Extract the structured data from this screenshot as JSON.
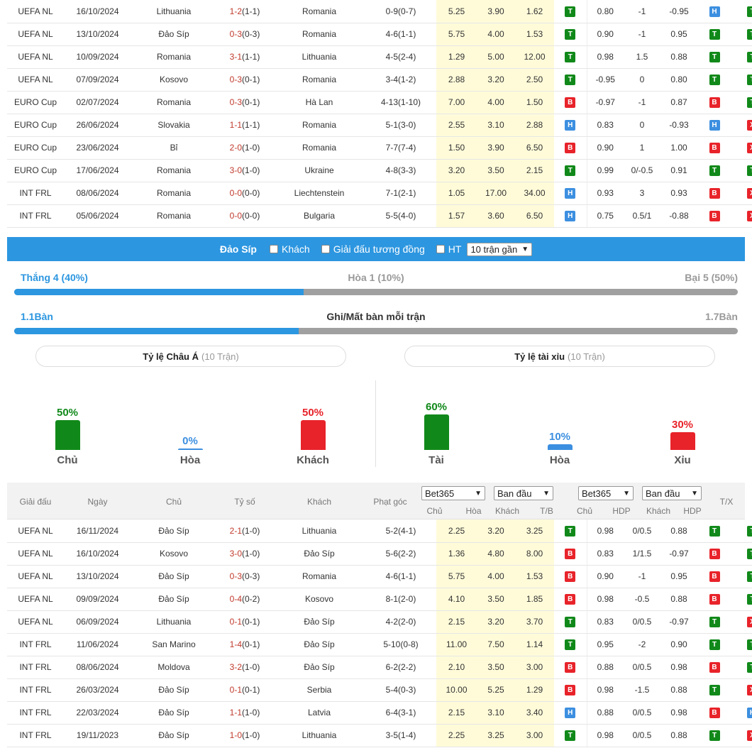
{
  "top_table": {
    "rows": [
      {
        "league": "UEFA NL",
        "date": "16/10/2024",
        "home": "Lithuania",
        "home_hl": false,
        "score": "1-2",
        "ht": "(1-1)",
        "away": "Romania",
        "away_hl": true,
        "corner": "0-9(0-7)",
        "o1": "5.25",
        "o2": "3.90",
        "o3": "1.62",
        "r1": "T",
        "h1": "0.80",
        "h2": "-1",
        "h3": "-0.95",
        "r2": "H",
        "r3": "T"
      },
      {
        "league": "UEFA NL",
        "date": "13/10/2024",
        "home": "Đảo Síp",
        "home_hl": false,
        "score": "0-3",
        "ht": "(0-3)",
        "away": "Romania",
        "away_hl": true,
        "corner": "4-6(1-1)",
        "o1": "5.75",
        "o2": "4.00",
        "o3": "1.53",
        "r1": "T",
        "h1": "0.90",
        "h2": "-1",
        "h3": "0.95",
        "r2": "T",
        "r3": "T"
      },
      {
        "league": "UEFA NL",
        "date": "10/09/2024",
        "home": "Romania",
        "home_hl": true,
        "score": "3-1",
        "ht": "(1-1)",
        "away": "Lithuania",
        "away_hl": false,
        "corner": "4-5(2-4)",
        "o1": "1.29",
        "o2": "5.00",
        "o3": "12.00",
        "r1": "T",
        "h1": "0.98",
        "h2": "1.5",
        "h3": "0.88",
        "r2": "T",
        "r3": "T"
      },
      {
        "league": "UEFA NL",
        "date": "07/09/2024",
        "home": "Kosovo",
        "home_hl": false,
        "score": "0-3",
        "ht": "(0-1)",
        "away": "Romania",
        "away_hl": true,
        "corner": "3-4(1-2)",
        "o1": "2.88",
        "o2": "3.20",
        "o3": "2.50",
        "r1": "T",
        "h1": "-0.95",
        "h2": "0",
        "h3": "0.80",
        "r2": "T",
        "r3": "T"
      },
      {
        "league": "EURO Cup",
        "date": "02/07/2024",
        "home": "Romania",
        "home_hl": true,
        "score": "0-3",
        "ht": "(0-1)",
        "away": "Hà Lan",
        "away_hl": false,
        "corner": "4-13(1-10)",
        "o1": "7.00",
        "o2": "4.00",
        "o3": "1.50",
        "r1": "B",
        "h1": "-0.97",
        "h2": "-1",
        "h3": "0.87",
        "r2": "B",
        "r3": "T"
      },
      {
        "league": "EURO Cup",
        "date": "26/06/2024",
        "home": "Slovakia",
        "home_hl": false,
        "score": "1-1",
        "ht": "(1-1)",
        "away": "Romania",
        "away_hl": true,
        "corner": "5-1(3-0)",
        "o1": "2.55",
        "o2": "3.10",
        "o3": "2.88",
        "r1": "H",
        "h1": "0.83",
        "h2": "0",
        "h3": "-0.93",
        "r2": "H",
        "r3": "X"
      },
      {
        "league": "EURO Cup",
        "date": "23/06/2024",
        "home": "Bỉ",
        "home_hl": false,
        "score": "2-0",
        "ht": "(1-0)",
        "away": "Romania",
        "away_hl": true,
        "corner": "7-7(7-4)",
        "o1": "1.50",
        "o2": "3.90",
        "o3": "6.50",
        "r1": "B",
        "h1": "0.90",
        "h2": "1",
        "h3": "1.00",
        "r2": "B",
        "r3": "X"
      },
      {
        "league": "EURO Cup",
        "date": "17/06/2024",
        "home": "Romania",
        "home_hl": true,
        "score": "3-0",
        "ht": "(1-0)",
        "away": "Ukraine",
        "away_hl": false,
        "corner": "4-8(3-3)",
        "o1": "3.20",
        "o2": "3.50",
        "o3": "2.15",
        "r1": "T",
        "h1": "0.99",
        "h2": "0/-0.5",
        "h3": "0.91",
        "r2": "T",
        "r3": "T"
      },
      {
        "league": "INT FRL",
        "date": "08/06/2024",
        "home": "Romania",
        "home_hl": true,
        "score": "0-0",
        "ht": "(0-0)",
        "away": "Liechtenstein",
        "away_hl": false,
        "corner": "7-1(2-1)",
        "o1": "1.05",
        "o2": "17.00",
        "o3": "34.00",
        "r1": "H",
        "h1": "0.93",
        "h2": "3",
        "h3": "0.93",
        "r2": "B",
        "r3": "X"
      },
      {
        "league": "INT FRL",
        "date": "05/06/2024",
        "home": "Romania",
        "home_hl": true,
        "score": "0-0",
        "ht": "(0-0)",
        "away": "Bulgaria",
        "away_hl": false,
        "corner": "5-5(4-0)",
        "o1": "1.57",
        "o2": "3.60",
        "o3": "6.50",
        "r1": "H",
        "h1": "0.75",
        "h2": "0.5/1",
        "h3": "-0.88",
        "r2": "B",
        "r3": "X"
      }
    ]
  },
  "filter": {
    "team": "Đảo Síp",
    "opt_away": "Khách",
    "opt_same_league": "Giải đấu tương đồng",
    "opt_ht": "HT",
    "select": "10 trận gần"
  },
  "summary": {
    "win": "Thắng 4 (40%)",
    "draw": "Hòa 1 (10%)",
    "loss": "Bại 5 (50%)",
    "win_frac": 0.4,
    "goals_for": "1.1Bàn",
    "goals_title": "Ghi/Mất bàn mỗi trận",
    "goals_against": "1.7Bàn",
    "goals_frac": 0.393
  },
  "panels": {
    "asian": {
      "title": "Tỷ lệ Châu Á",
      "sub": "(10 Trận)"
    },
    "ou": {
      "title": "Tỷ lệ tài xỉu",
      "sub": "(10 Trận)"
    }
  },
  "asian_bars": [
    {
      "pct": "50%",
      "label": "Chủ",
      "value": 50,
      "color": "#11891a"
    },
    {
      "pct": "0%",
      "label": "Hòa",
      "value": 0,
      "color": "#3c8fe0"
    },
    {
      "pct": "50%",
      "label": "Khách",
      "value": 50,
      "color": "#e8232a"
    }
  ],
  "ou_bars": [
    {
      "pct": "60%",
      "label": "Tài",
      "value": 60,
      "color": "#11891a"
    },
    {
      "pct": "10%",
      "label": "Hòa",
      "value": 10,
      "color": "#3c8fe0"
    },
    {
      "pct": "30%",
      "label": "Xỉu",
      "value": 30,
      "color": "#e8232a"
    }
  ],
  "table2_header": {
    "league": "Giải đấu",
    "date": "Ngày",
    "home": "Chủ",
    "score": "Tỷ số",
    "away": "Khách",
    "corner": "Phạt góc",
    "bookmaker1": "Bet365",
    "type1": "Ban đầu",
    "bookmaker2": "Bet365",
    "type2": "Ban đầu",
    "c_home": "Chủ",
    "c_draw": "Hòa",
    "c_away": "Khách",
    "c_tb": "T/B",
    "c_home2": "Chủ",
    "c_hdp": "HDP",
    "c_away2": "Khách",
    "c_hdp2": "HDP",
    "c_tx": "T/X"
  },
  "bottom_table": {
    "rows": [
      {
        "league": "UEFA NL",
        "date": "16/11/2024",
        "home": "Đảo Síp",
        "home_hl": true,
        "score": "2-1",
        "ht": "(1-0)",
        "away": "Lithuania",
        "away_hl": false,
        "corner": "5-2(4-1)",
        "o1": "2.25",
        "o2": "3.20",
        "o3": "3.25",
        "r1": "T",
        "h1": "0.98",
        "h2": "0/0.5",
        "h3": "0.88",
        "r2": "T",
        "r3": "T"
      },
      {
        "league": "UEFA NL",
        "date": "16/10/2024",
        "home": "Kosovo",
        "home_hl": false,
        "score": "3-0",
        "ht": "(1-0)",
        "away": "Đảo Síp",
        "away_hl": true,
        "corner": "5-6(2-2)",
        "o1": "1.36",
        "o2": "4.80",
        "o3": "8.00",
        "r1": "B",
        "h1": "0.83",
        "h2": "1/1.5",
        "h3": "-0.97",
        "r2": "B",
        "r3": "T"
      },
      {
        "league": "UEFA NL",
        "date": "13/10/2024",
        "home": "Đảo Síp",
        "home_hl": true,
        "score": "0-3",
        "ht": "(0-3)",
        "away": "Romania",
        "away_hl": false,
        "corner": "4-6(1-1)",
        "o1": "5.75",
        "o2": "4.00",
        "o3": "1.53",
        "r1": "B",
        "h1": "0.90",
        "h2": "-1",
        "h3": "0.95",
        "r2": "B",
        "r3": "T"
      },
      {
        "league": "UEFA NL",
        "date": "09/09/2024",
        "home": "Đảo Síp",
        "home_hl": true,
        "score": "0-4",
        "ht": "(0-2)",
        "away": "Kosovo",
        "away_hl": false,
        "corner": "8-1(2-0)",
        "o1": "4.10",
        "o2": "3.50",
        "o3": "1.85",
        "r1": "B",
        "h1": "0.98",
        "h2": "-0.5",
        "h3": "0.88",
        "r2": "B",
        "r3": "T"
      },
      {
        "league": "UEFA NL",
        "date": "06/09/2024",
        "home": "Lithuania",
        "home_hl": false,
        "score": "0-1",
        "ht": "(0-1)",
        "away": "Đảo Síp",
        "away_hl": true,
        "corner": "4-2(2-0)",
        "o1": "2.15",
        "o2": "3.20",
        "o3": "3.70",
        "r1": "T",
        "h1": "0.83",
        "h2": "0/0.5",
        "h3": "-0.97",
        "r2": "T",
        "r3": "X"
      },
      {
        "league": "INT FRL",
        "date": "11/06/2024",
        "home": "San Marino",
        "home_hl": false,
        "score": "1-4",
        "ht": "(0-1)",
        "away": "Đảo Síp",
        "away_hl": true,
        "corner": "5-10(0-8)",
        "o1": "11.00",
        "o2": "7.50",
        "o3": "1.14",
        "r1": "T",
        "h1": "0.95",
        "h2": "-2",
        "h3": "0.90",
        "r2": "T",
        "r3": "T"
      },
      {
        "league": "INT FRL",
        "date": "08/06/2024",
        "home": "Moldova",
        "home_hl": false,
        "score": "3-2",
        "ht": "(1-0)",
        "away": "Đảo Síp",
        "away_hl": true,
        "corner": "6-2(2-2)",
        "o1": "2.10",
        "o2": "3.50",
        "o3": "3.00",
        "r1": "B",
        "h1": "0.88",
        "h2": "0/0.5",
        "h3": "0.98",
        "r2": "B",
        "r3": "T"
      },
      {
        "league": "INT FRL",
        "date": "26/03/2024",
        "home": "Đảo Síp",
        "home_hl": true,
        "score": "0-1",
        "ht": "(0-1)",
        "away": "Serbia",
        "away_hl": false,
        "corner": "5-4(0-3)",
        "o1": "10.00",
        "o2": "5.25",
        "o3": "1.29",
        "r1": "B",
        "h1": "0.98",
        "h2": "-1.5",
        "h3": "0.88",
        "r2": "T",
        "r3": "X"
      },
      {
        "league": "INT FRL",
        "date": "22/03/2024",
        "home": "Đảo Síp",
        "home_hl": true,
        "score": "1-1",
        "ht": "(1-0)",
        "away": "Latvia",
        "away_hl": false,
        "corner": "6-4(3-1)",
        "o1": "2.15",
        "o2": "3.10",
        "o3": "3.40",
        "r1": "H",
        "h1": "0.88",
        "h2": "0/0.5",
        "h3": "0.98",
        "r2": "B",
        "r3": "H"
      },
      {
        "league": "INT FRL",
        "date": "19/11/2023",
        "home": "Đảo Síp",
        "home_hl": true,
        "score": "1-0",
        "ht": "(1-0)",
        "away": "Lithuania",
        "away_hl": false,
        "corner": "3-5(1-4)",
        "o1": "2.25",
        "o2": "3.25",
        "o3": "3.00",
        "r1": "T",
        "h1": "0.98",
        "h2": "0/0.5",
        "h3": "0.88",
        "r2": "T",
        "r3": "X"
      }
    ]
  }
}
